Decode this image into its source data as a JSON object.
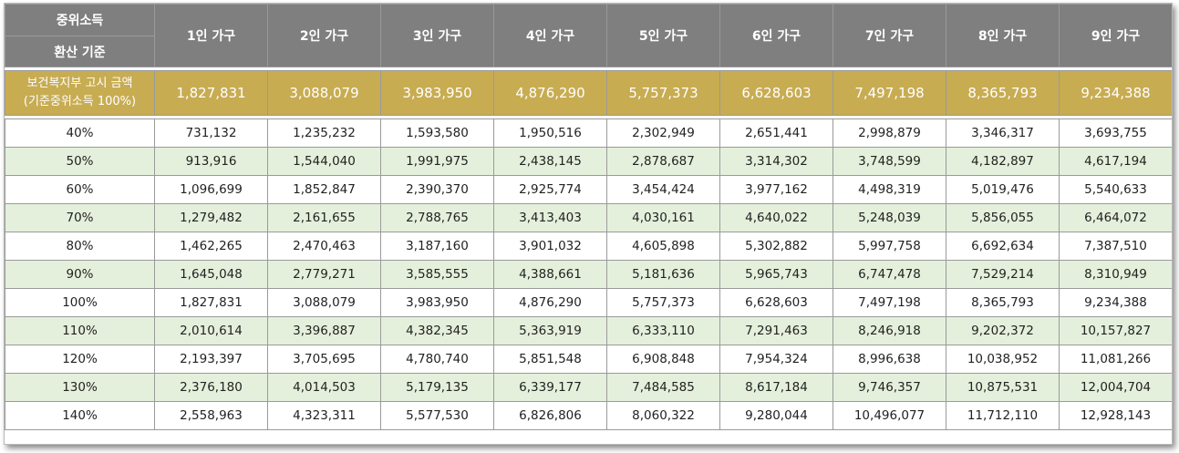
{
  "header": {
    "corner_line1": "중위소득",
    "corner_line2": "환산 기준",
    "columns": [
      "1인 가구",
      "2인 가구",
      "3인 가구",
      "4인 가구",
      "5인 가구",
      "6인 가구",
      "7인 가구",
      "8인 가구",
      "9인 가구"
    ]
  },
  "base_row": {
    "label_line1": "보건복지부 고시 금액",
    "label_line2": "(기준중위소득 100%)",
    "values": [
      "1,827,831",
      "3,088,079",
      "3,983,950",
      "4,876,290",
      "5,757,373",
      "6,628,603",
      "7,497,198",
      "8,365,793",
      "9,234,388"
    ]
  },
  "rows": [
    {
      "label": "40%",
      "values": [
        "731,132",
        "1,235,232",
        "1,593,580",
        "1,950,516",
        "2,302,949",
        "2,651,441",
        "2,998,879",
        "3,346,317",
        "3,693,755"
      ]
    },
    {
      "label": "50%",
      "values": [
        "913,916",
        "1,544,040",
        "1,991,975",
        "2,438,145",
        "2,878,687",
        "3,314,302",
        "3,748,599",
        "4,182,897",
        "4,617,194"
      ]
    },
    {
      "label": "60%",
      "values": [
        "1,096,699",
        "1,852,847",
        "2,390,370",
        "2,925,774",
        "3,454,424",
        "3,977,162",
        "4,498,319",
        "5,019,476",
        "5,540,633"
      ]
    },
    {
      "label": "70%",
      "values": [
        "1,279,482",
        "2,161,655",
        "2,788,765",
        "3,413,403",
        "4,030,161",
        "4,640,022",
        "5,248,039",
        "5,856,055",
        "6,464,072"
      ]
    },
    {
      "label": "80%",
      "values": [
        "1,462,265",
        "2,470,463",
        "3,187,160",
        "3,901,032",
        "4,605,898",
        "5,302,882",
        "5,997,758",
        "6,692,634",
        "7,387,510"
      ]
    },
    {
      "label": "90%",
      "values": [
        "1,645,048",
        "2,779,271",
        "3,585,555",
        "4,388,661",
        "5,181,636",
        "5,965,743",
        "6,747,478",
        "7,529,214",
        "8,310,949"
      ]
    },
    {
      "label": "100%",
      "values": [
        "1,827,831",
        "3,088,079",
        "3,983,950",
        "4,876,290",
        "5,757,373",
        "6,628,603",
        "7,497,198",
        "8,365,793",
        "9,234,388"
      ]
    },
    {
      "label": "110%",
      "values": [
        "2,010,614",
        "3,396,887",
        "4,382,345",
        "5,363,919",
        "6,333,110",
        "7,291,463",
        "8,246,918",
        "9,202,372",
        "10,157,827"
      ]
    },
    {
      "label": "120%",
      "values": [
        "2,193,397",
        "3,705,695",
        "4,780,740",
        "5,851,548",
        "6,908,848",
        "7,954,324",
        "8,996,638",
        "10,038,952",
        "11,081,266"
      ]
    },
    {
      "label": "130%",
      "values": [
        "2,376,180",
        "4,014,503",
        "5,179,135",
        "6,339,177",
        "7,484,585",
        "8,617,184",
        "9,746,357",
        "10,875,531",
        "12,004,704"
      ]
    },
    {
      "label": "140%",
      "values": [
        "2,558,963",
        "4,323,311",
        "5,577,530",
        "6,826,806",
        "8,060,322",
        "9,280,044",
        "10,496,077",
        "11,712,110",
        "12,928,143"
      ]
    }
  ],
  "colors": {
    "header_bg": "#7f7f7f",
    "gold_bg": "#c8ac52",
    "stripe_bg": "#e5f0dc"
  }
}
